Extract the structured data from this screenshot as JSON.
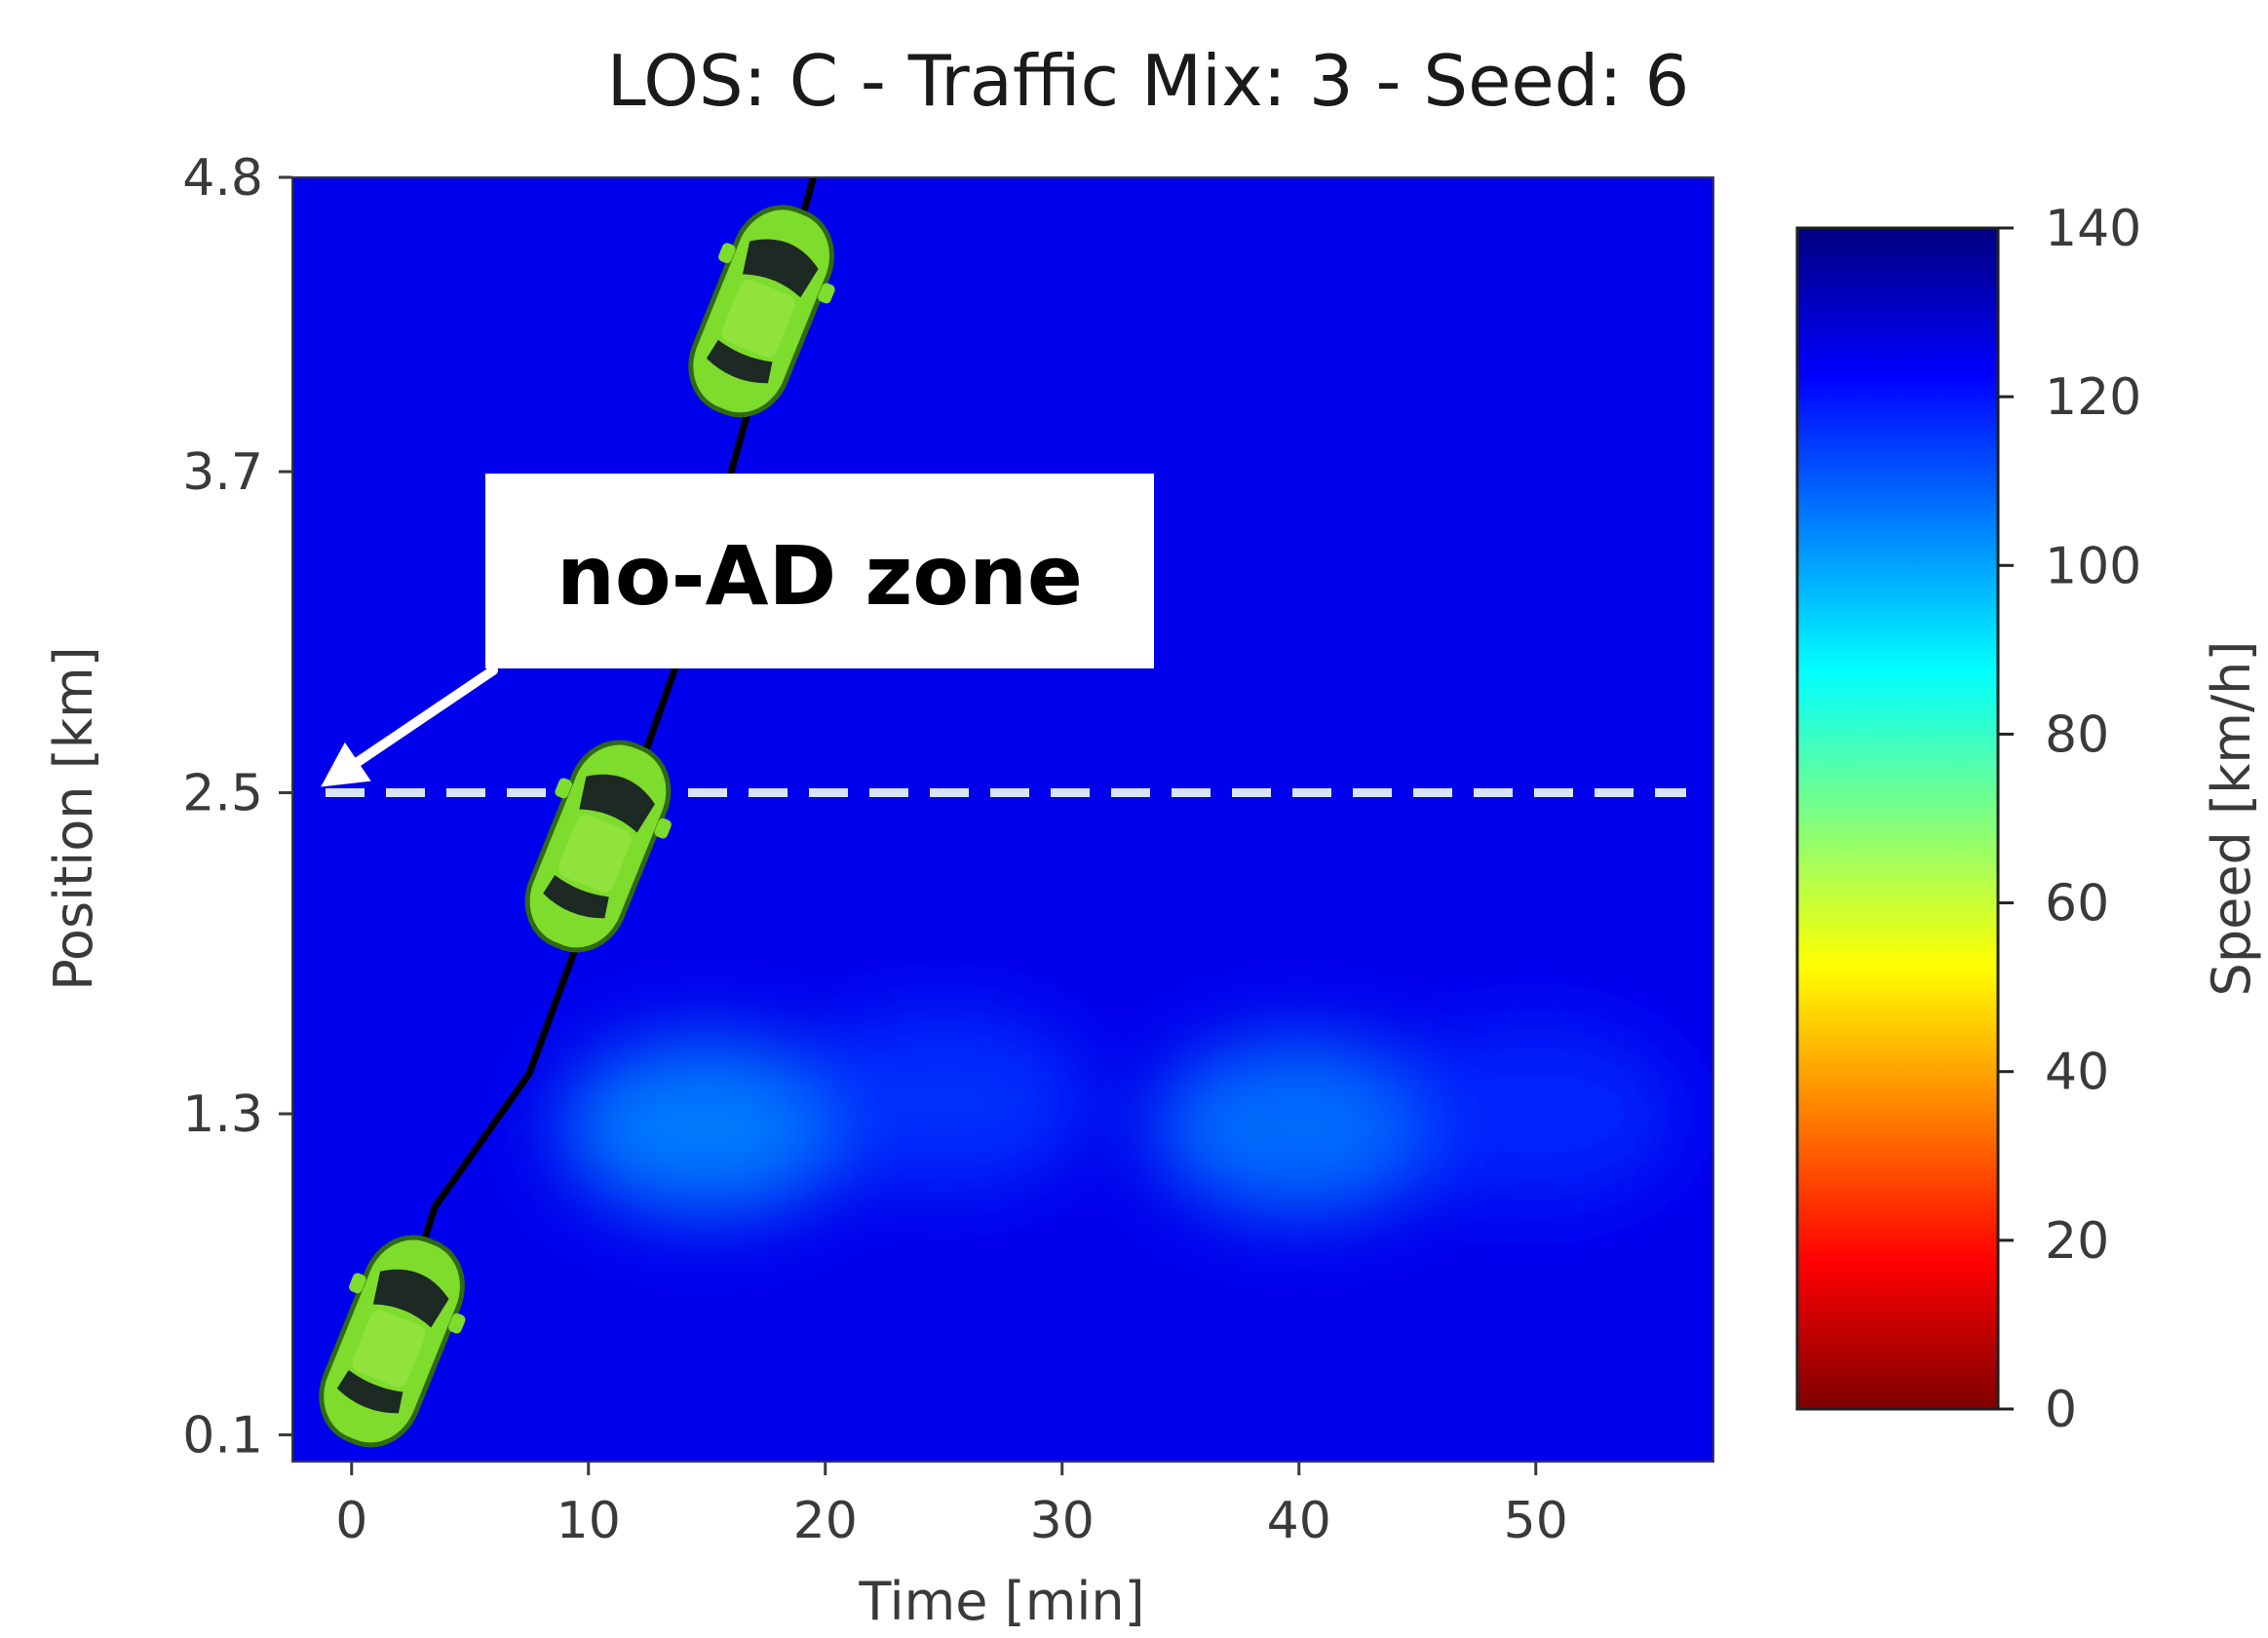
{
  "chart_data": {
    "type": "heatmap",
    "title": "LOS: C - Traffic Mix: 3 - Seed: 6",
    "xlabel": "Time [min]",
    "ylabel": "Position [km]",
    "xlim": [
      -2.5,
      57.5
    ],
    "ylim": [
      0.0,
      4.8
    ],
    "x_ticks": [
      {
        "value": 0,
        "label": "0"
      },
      {
        "value": 10,
        "label": "10"
      },
      {
        "value": 20,
        "label": "20"
      },
      {
        "value": 30,
        "label": "30"
      },
      {
        "value": 40,
        "label": "40"
      },
      {
        "value": 50,
        "label": "50"
      }
    ],
    "y_ticks": [
      {
        "value": 0.1,
        "label": "0.1"
      },
      {
        "value": 1.3,
        "label": "1.3"
      },
      {
        "value": 2.5,
        "label": "2.5"
      },
      {
        "value": 3.7,
        "label": "3.7"
      },
      {
        "value": 4.8,
        "label": "4.8"
      }
    ],
    "heatmap": {
      "colormap": "jet",
      "base_speed": 125,
      "slow_spots": [
        {
          "t": 15,
          "pos": 1.25,
          "speed": 103
        },
        {
          "t": 40,
          "pos": 1.25,
          "speed": 105
        },
        {
          "t": 25,
          "pos": 1.35,
          "speed": 115
        },
        {
          "t": 50,
          "pos": 1.3,
          "speed": 117
        }
      ]
    },
    "colorbar": {
      "label": "Speed [km/h]",
      "range": [
        0,
        140
      ],
      "ticks": [
        "0",
        "20",
        "40",
        "60",
        "80",
        "100",
        "120",
        "140"
      ],
      "stops": [
        "#7f0000",
        "#ff0000",
        "#ff7f00",
        "#ffff00",
        "#7fff7f",
        "#00ffff",
        "#007fff",
        "#0000ff",
        "#00007f"
      ]
    },
    "trajectory": [
      {
        "t": 0.5,
        "pos": 0.1
      },
      {
        "t": 3.5,
        "pos": 0.95
      },
      {
        "t": 7.5,
        "pos": 1.45
      },
      {
        "t": 10,
        "pos": 2.05
      },
      {
        "t": 12,
        "pos": 2.55
      },
      {
        "t": 14,
        "pos": 3.05
      },
      {
        "t": 16.5,
        "pos": 3.85
      },
      {
        "t": 19.5,
        "pos": 4.8
      }
    ],
    "vehicles": [
      {
        "t": 1.7,
        "pos": 0.45
      },
      {
        "t": 10.4,
        "pos": 2.3
      },
      {
        "t": 17.3,
        "pos": 4.3
      }
    ],
    "threshold": {
      "pos": 2.5,
      "style": "dashed",
      "color": "#d8e4f5"
    },
    "annotation": {
      "text": "no-AD zone",
      "box_color": "#ffffff",
      "arrow_target": {
        "t": -1.3,
        "pos": 2.5
      }
    },
    "line_color": "#000000",
    "vehicle_color": "#7ddc2c"
  }
}
